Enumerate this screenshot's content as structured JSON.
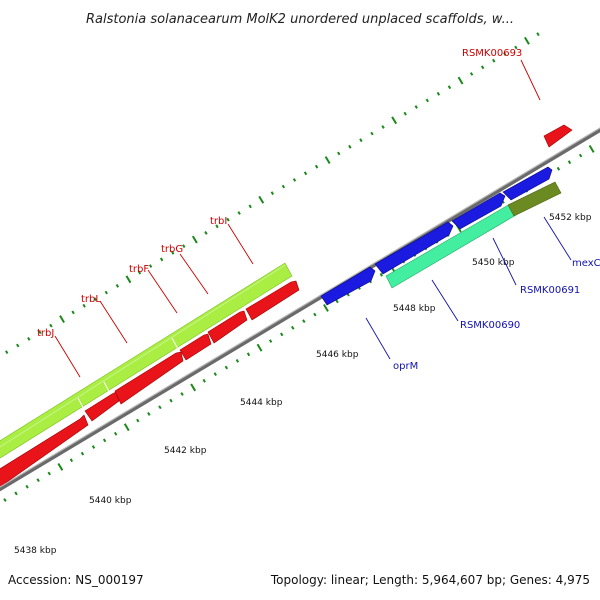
{
  "header": {
    "title": "Ralstonia solanacearum MolK2 unordered unplaced scaffolds, w..."
  },
  "footer": {
    "accession": "Accession: NS_000197",
    "summary": "Topology: linear; Length: 5,964,607 bp; Genes: 4,975"
  },
  "colors": {
    "background": "#ffffff",
    "backbone": "#8a8a8a",
    "tick": "#1a8a1a",
    "forward_gene": "#e8141a",
    "forward_operon": "#aaee44",
    "reverse_gene": "#1a1ae0",
    "reverse_operon": "#44eea0",
    "reverse_operon_dark": "#6b8a22",
    "forward_label": "#cc0000",
    "reverse_label": "#1010b0"
  },
  "scale_labels": [
    "5438 kbp",
    "5440 kbp",
    "5442 kbp",
    "5444 kbp",
    "5446 kbp",
    "5448 kbp",
    "5450 kbp",
    "5452 kbp"
  ],
  "forward_genes": [
    {
      "label": "trbJ"
    },
    {
      "label": "trbL"
    },
    {
      "label": "trbF"
    },
    {
      "label": "trbG"
    },
    {
      "label": "trbI"
    },
    {
      "label": "RSMK00693"
    }
  ],
  "reverse_genes": [
    {
      "label": "oprM"
    },
    {
      "label": "RSMK00690"
    },
    {
      "label": "RSMK00691"
    },
    {
      "label": "mexC"
    }
  ]
}
